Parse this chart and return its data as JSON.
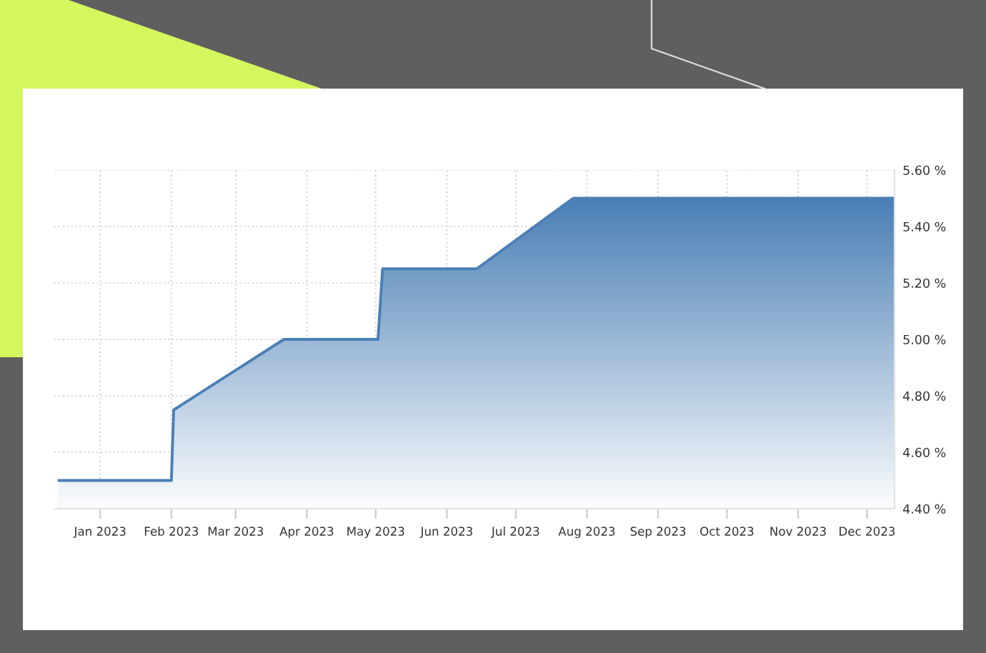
{
  "chart_data": {
    "type": "area",
    "x": [
      "2022-12-14",
      "2023-02-01",
      "2023-02-02",
      "2023-03-22",
      "2023-05-02",
      "2023-05-04",
      "2023-06-14",
      "2023-07-26",
      "2023-12-13"
    ],
    "series": [
      {
        "color": "#4a7fb5",
        "values": [
          4.5,
          4.5,
          4.75,
          5.0,
          5.0,
          5.25,
          5.25,
          5.5,
          5.5
        ]
      }
    ],
    "xlim": [
      "2022-12-12",
      "2023-12-13"
    ],
    "xticks": [
      {
        "value": "2023-01-01",
        "label": "Jan 2023"
      },
      {
        "value": "2023-02-01",
        "label": "Feb 2023"
      },
      {
        "value": "2023-03-01",
        "label": "Mar 2023"
      },
      {
        "value": "2023-04-01",
        "label": "Apr 2023"
      },
      {
        "value": "2023-05-01",
        "label": "May 2023"
      },
      {
        "value": "2023-06-01",
        "label": "Jun 2023"
      },
      {
        "value": "2023-07-01",
        "label": "Jul 2023"
      },
      {
        "value": "2023-08-01",
        "label": "Aug 2023"
      },
      {
        "value": "2023-09-01",
        "label": "Sep 2023"
      },
      {
        "value": "2023-10-01",
        "label": "Oct 2023"
      },
      {
        "value": "2023-11-01",
        "label": "Nov 2023"
      },
      {
        "value": "2023-12-01",
        "label": "Dec 2023"
      }
    ],
    "ylim": [
      4.4,
      5.6
    ],
    "yticks": [
      {
        "value": 4.4,
        "label": "4.40 %"
      },
      {
        "value": 4.6,
        "label": "4.60 %"
      },
      {
        "value": 4.8,
        "label": "4.80 %"
      },
      {
        "value": 5.0,
        "label": "5.00 %"
      },
      {
        "value": 5.2,
        "label": "5.20 %"
      },
      {
        "value": 5.4,
        "label": "5.40 %"
      },
      {
        "value": 5.6,
        "label": "5.60 %"
      }
    ],
    "grid": true,
    "line_style": "solid"
  }
}
